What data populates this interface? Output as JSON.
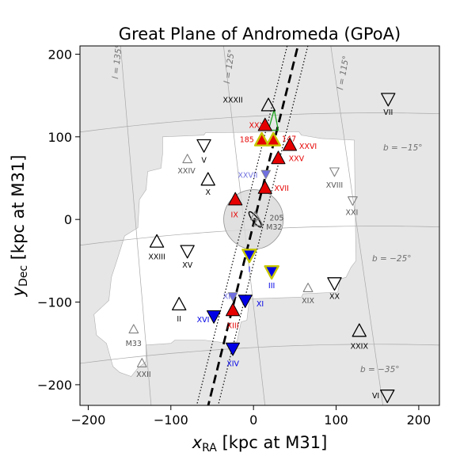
{
  "chart_data": {
    "type": "scatter",
    "title": "Great Plane of Andromeda (GPoA)",
    "xlabel_main": "x",
    "xlabel_sub": "RA",
    "xlabel_rest": " [kpc at M31]",
    "ylabel_main": "y",
    "ylabel_sub": "Dec",
    "ylabel_rest": " [kpc at M31]",
    "xlim": [
      -210,
      225
    ],
    "ylim": [
      -225,
      210
    ],
    "xticks": [
      -200,
      -100,
      0,
      100,
      200
    ],
    "yticks": [
      -200,
      -100,
      0,
      100,
      200
    ],
    "xtick_labels": [
      "−200",
      "−100",
      "0",
      "100",
      "200"
    ],
    "ytick_labels": [
      "−200",
      "−100",
      "0",
      "100",
      "200"
    ],
    "colors": {
      "on_plane": "#e60000",
      "off_plane": "#0000e6",
      "edge_yellow": "#c8c800",
      "faint": "#808080",
      "faint_blue": "#7070e0",
      "footprint": "#ffffff",
      "background": "#e6e6e6"
    },
    "coord_labels": {
      "l_135": "l = 135°",
      "l_125": "l = 125°",
      "l_115": "l = 115°",
      "b_15": "b = −15°",
      "b_25": "b = −25°",
      "b_35": "b = −35°"
    },
    "satellites": [
      {
        "name": "XXXII",
        "x": 18,
        "y": 138,
        "dir": "up",
        "style": "open",
        "lx": -25,
        "ly": 145
      },
      {
        "name": "XXX",
        "x": 14,
        "y": 114,
        "dir": "up",
        "style": "red",
        "lx": 4,
        "ly": 114
      },
      {
        "name": "185",
        "x": 10,
        "y": 96,
        "dir": "up",
        "style": "red-yellow",
        "lx": -8,
        "ly": 97
      },
      {
        "name": "147",
        "x": 24,
        "y": 96,
        "dir": "up",
        "style": "red-yellow",
        "lx": 43,
        "ly": 98
      },
      {
        "name": "XXVI",
        "x": 44,
        "y": 90,
        "dir": "up",
        "style": "red",
        "lx": 66,
        "ly": 89
      },
      {
        "name": "XXV",
        "x": 30,
        "y": 74,
        "dir": "up",
        "style": "red",
        "lx": 52,
        "ly": 74
      },
      {
        "name": "XXVII",
        "x": 15,
        "y": 55,
        "dir": "down",
        "style": "faint-blue",
        "lx": -7,
        "ly": 54
      },
      {
        "name": "XVII",
        "x": 14,
        "y": 38,
        "dir": "up",
        "style": "red",
        "lx": 34,
        "ly": 38
      },
      {
        "name": "IX",
        "x": -22,
        "y": 24,
        "dir": "up",
        "style": "red",
        "lx": -23,
        "ly": 6
      },
      {
        "name": "205",
        "x": 2,
        "y": 4,
        "dir": "up",
        "style": "faint",
        "lx": 28,
        "ly": 2
      },
      {
        "name": "M32",
        "x": 6,
        "y": -3,
        "dir": "up",
        "style": "faint",
        "lx": 25,
        "ly": -9
      },
      {
        "name": "I",
        "x": -5,
        "y": -43,
        "dir": "down",
        "style": "blue-yellow",
        "lx": -5,
        "ly": -60
      },
      {
        "name": "III",
        "x": 22,
        "y": -63,
        "dir": "down",
        "style": "blue-yellow",
        "lx": 22,
        "ly": -80
      },
      {
        "name": "XII",
        "x": -25,
        "y": -93,
        "dir": "down",
        "style": "faint-blue",
        "lx": -31,
        "ly": -93
      },
      {
        "name": "XI",
        "x": -10,
        "y": -98,
        "dir": "down",
        "style": "blue",
        "lx": 8,
        "ly": -102
      },
      {
        "name": "XVI",
        "x": -48,
        "y": -117,
        "dir": "down",
        "style": "blue",
        "lx": -61,
        "ly": -121
      },
      {
        "name": "XIII",
        "x": -25,
        "y": -110,
        "dir": "up",
        "style": "red",
        "lx": -25,
        "ly": -128
      },
      {
        "name": "XIV",
        "x": -25,
        "y": -156,
        "dir": "down",
        "style": "blue",
        "lx": -25,
        "ly": -174
      },
      {
        "name": "V",
        "x": -60,
        "y": 90,
        "dir": "down",
        "style": "open",
        "lx": -60,
        "ly": 72
      },
      {
        "name": "XXIV",
        "x": -80,
        "y": 73,
        "dir": "up",
        "style": "faint",
        "lx": -81,
        "ly": 59
      },
      {
        "name": "X",
        "x": -55,
        "y": 48,
        "dir": "up",
        "style": "open",
        "lx": -55,
        "ly": 33
      },
      {
        "name": "XXIII",
        "x": -117,
        "y": -27,
        "dir": "up",
        "style": "open",
        "lx": -117,
        "ly": -45
      },
      {
        "name": "XV",
        "x": -80,
        "y": -38,
        "dir": "down",
        "style": "open",
        "lx": -80,
        "ly": -55
      },
      {
        "name": "II",
        "x": -90,
        "y": -103,
        "dir": "up",
        "style": "open",
        "lx": -90,
        "ly": -120
      },
      {
        "name": "M33",
        "x": -145,
        "y": -133,
        "dir": "up",
        "style": "faint",
        "lx": -145,
        "ly": -150
      },
      {
        "name": "XXII",
        "x": -135,
        "y": -174,
        "dir": "up",
        "style": "faint",
        "lx": -133,
        "ly": -187
      },
      {
        "name": "VII",
        "x": 163,
        "y": 146,
        "dir": "down",
        "style": "open",
        "lx": 163,
        "ly": 130
      },
      {
        "name": "XVIII",
        "x": 98,
        "y": 58,
        "dir": "down",
        "style": "faint",
        "lx": 98,
        "ly": 42
      },
      {
        "name": "XXI",
        "x": 120,
        "y": 23,
        "dir": "down",
        "style": "faint",
        "lx": 119,
        "ly": 9
      },
      {
        "name": "XIX",
        "x": 66,
        "y": -83,
        "dir": "up",
        "style": "faint",
        "lx": 66,
        "ly": -98
      },
      {
        "name": "XX",
        "x": 98,
        "y": -77,
        "dir": "down",
        "style": "open",
        "lx": 98,
        "ly": -93
      },
      {
        "name": "XXIX",
        "x": 128,
        "y": -135,
        "dir": "up",
        "style": "open",
        "lx": 128,
        "ly": -153
      },
      {
        "name": "VI",
        "x": 162,
        "y": -213,
        "dir": "down",
        "style": "open",
        "lx": 148,
        "ly": -213
      }
    ]
  }
}
